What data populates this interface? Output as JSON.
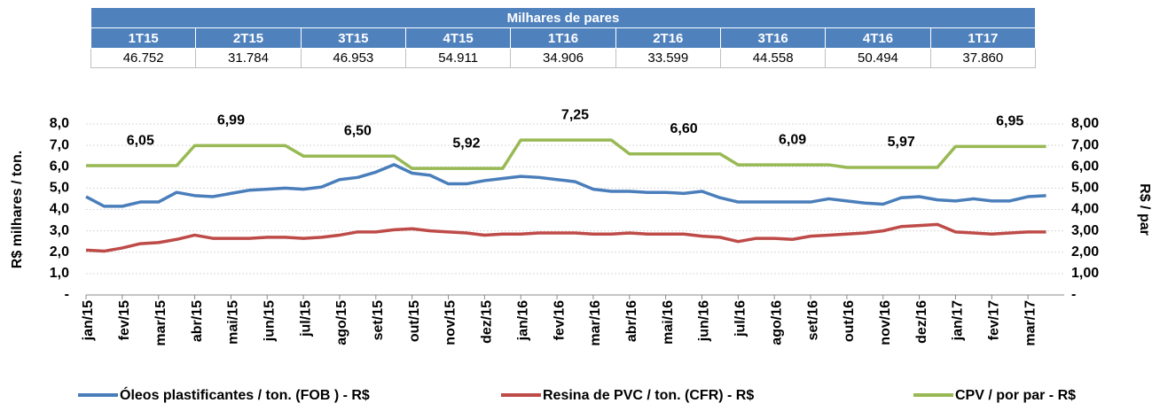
{
  "table": {
    "title": "Milhares de pares",
    "columns": [
      "1T15",
      "2T15",
      "3T15",
      "4T15",
      "1T16",
      "2T16",
      "3T16",
      "4T16",
      "1T17"
    ],
    "values": [
      "46.752",
      "31.784",
      "46.953",
      "54.911",
      "34.906",
      "33.599",
      "44.558",
      "50.494",
      "37.860"
    ]
  },
  "chart_data": {
    "type": "line",
    "categories": [
      "jan/15",
      null,
      "fev/15",
      null,
      "mar/15",
      null,
      "abr/15",
      null,
      "mai/15",
      null,
      "jun/15",
      null,
      "jul/15",
      null,
      "ago/15",
      null,
      "set/15",
      null,
      "out/15",
      null,
      "nov/15",
      null,
      "dez/15",
      null,
      "jan/16",
      null,
      "fev/16",
      null,
      "mar/16",
      null,
      "abr/16",
      null,
      "mai/16",
      null,
      "jun/16",
      null,
      "jul/16",
      null,
      "ago/16",
      null,
      "set/16",
      null,
      "out/16",
      null,
      "nov/16",
      null,
      "dez/16",
      null,
      "jan/17",
      null,
      "fev/17",
      null,
      "mar/17",
      null
    ],
    "ylabel": "R$ milhares / ton.",
    "y2label": "R$ / par",
    "ylim": [
      0,
      8
    ],
    "yticks": [
      {
        "value": 0,
        "label": "-"
      },
      {
        "value": 1,
        "label": "1,0"
      },
      {
        "value": 2,
        "label": "2,0"
      },
      {
        "value": 3,
        "label": "3,0"
      },
      {
        "value": 4,
        "label": "4,0"
      },
      {
        "value": 5,
        "label": "5,0"
      },
      {
        "value": 6,
        "label": "6,0"
      },
      {
        "value": 7,
        "label": "7,0"
      },
      {
        "value": 8,
        "label": "8,0"
      }
    ],
    "y2lim": [
      0,
      8
    ],
    "y2ticks": [
      {
        "value": 0,
        "label": "-"
      },
      {
        "value": 1,
        "label": "1,00"
      },
      {
        "value": 2,
        "label": "2,00"
      },
      {
        "value": 3,
        "label": "3,00"
      },
      {
        "value": 4,
        "label": "4,00"
      },
      {
        "value": 5,
        "label": "5,00"
      },
      {
        "value": 6,
        "label": "6,00"
      },
      {
        "value": 7,
        "label": "7,00"
      },
      {
        "value": 8,
        "label": "8,00"
      }
    ],
    "grid": true,
    "legend": "bottom",
    "series": [
      {
        "name": "Óleos plastificantes / ton. (FOB ) - R$",
        "color": "#4a7ebb",
        "values": [
          4.6,
          4.15,
          4.15,
          4.35,
          4.35,
          4.8,
          4.65,
          4.6,
          4.75,
          4.9,
          4.95,
          5.0,
          4.95,
          5.05,
          5.4,
          5.5,
          5.75,
          6.1,
          5.7,
          5.6,
          5.2,
          5.2,
          5.35,
          5.45,
          5.55,
          5.5,
          5.4,
          5.3,
          4.95,
          4.85,
          4.85,
          4.8,
          4.8,
          4.75,
          4.85,
          4.55,
          4.35,
          4.35,
          4.35,
          4.35,
          4.35,
          4.5,
          4.4,
          4.3,
          4.25,
          4.55,
          4.6,
          4.45,
          4.4,
          4.5,
          4.4,
          4.4,
          4.6,
          4.65
        ]
      },
      {
        "name": "Resina de PVC / ton. (CFR) - R$",
        "color": "#be4b48",
        "values": [
          2.1,
          2.05,
          2.2,
          2.4,
          2.45,
          2.6,
          2.8,
          2.65,
          2.65,
          2.65,
          2.7,
          2.7,
          2.65,
          2.7,
          2.8,
          2.95,
          2.95,
          3.05,
          3.1,
          3.0,
          2.95,
          2.9,
          2.8,
          2.85,
          2.85,
          2.9,
          2.9,
          2.9,
          2.85,
          2.85,
          2.9,
          2.85,
          2.85,
          2.85,
          2.75,
          2.7,
          2.5,
          2.65,
          2.65,
          2.6,
          2.75,
          2.8,
          2.85,
          2.9,
          3.0,
          3.2,
          3.25,
          3.3,
          2.95,
          2.9,
          2.85,
          2.9,
          2.95,
          2.95
        ]
      },
      {
        "name": "CPV / por par - R$",
        "color": "#98b954",
        "axis": "y2",
        "values": [
          6.05,
          6.05,
          6.05,
          6.05,
          6.05,
          6.05,
          6.99,
          6.99,
          6.99,
          6.99,
          6.99,
          6.99,
          6.5,
          6.5,
          6.5,
          6.5,
          6.5,
          6.5,
          5.92,
          5.92,
          5.92,
          5.92,
          5.92,
          5.92,
          7.25,
          7.25,
          7.25,
          7.25,
          7.25,
          7.25,
          6.6,
          6.6,
          6.6,
          6.6,
          6.6,
          6.6,
          6.09,
          6.09,
          6.09,
          6.09,
          6.09,
          6.09,
          5.97,
          5.97,
          5.97,
          5.97,
          5.97,
          5.97,
          6.95,
          6.95,
          6.95,
          6.95,
          6.95,
          6.95
        ],
        "value_labels": [
          null,
          null,
          null,
          "6,05",
          null,
          null,
          null,
          null,
          "6,99",
          null,
          null,
          null,
          null,
          null,
          null,
          "6,50",
          null,
          null,
          null,
          null,
          null,
          "5,92",
          null,
          null,
          null,
          null,
          null,
          "7,25",
          null,
          null,
          null,
          null,
          null,
          "6,60",
          null,
          null,
          null,
          null,
          null,
          "6,09",
          null,
          null,
          null,
          null,
          null,
          "5,97",
          null,
          null,
          null,
          null,
          null,
          "6,95",
          null,
          null
        ]
      }
    ]
  }
}
